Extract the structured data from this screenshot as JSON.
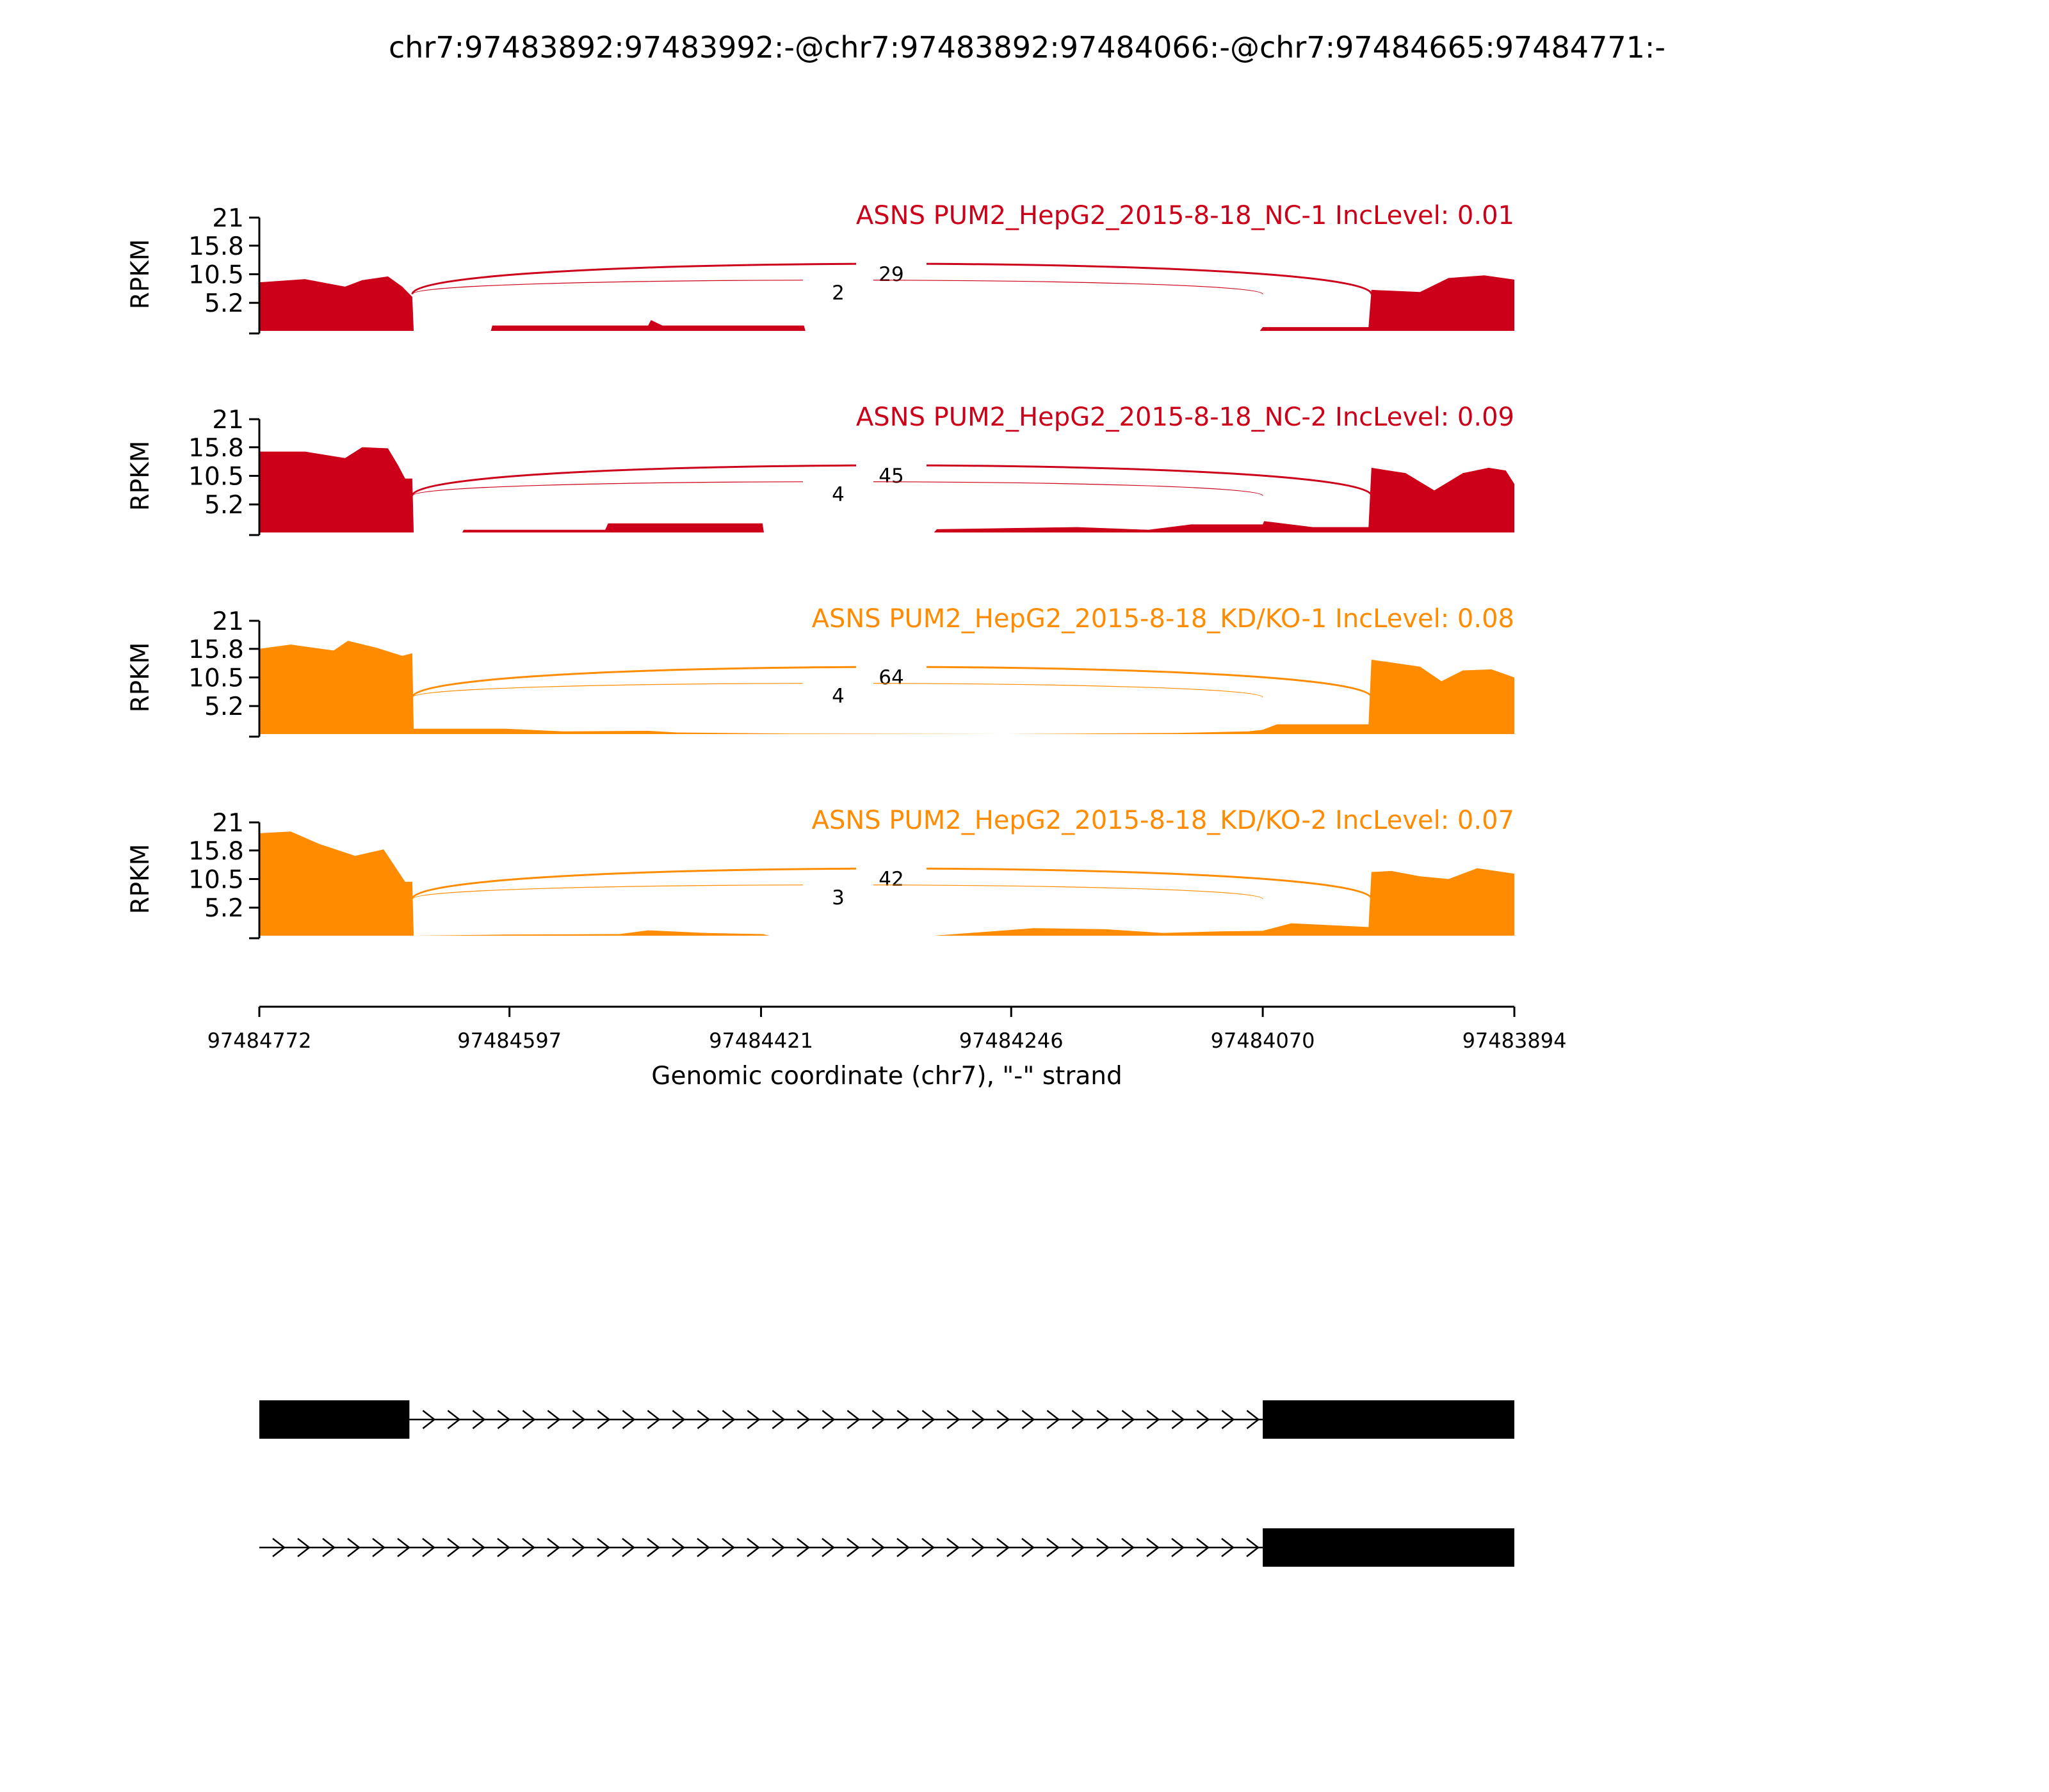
{
  "chart_data": {
    "type": "area",
    "title": "chr7:97483892:97483992:-@chr7:97483892:97484066:-@chr7:97484665:97484771:-",
    "ylabel": "RPKM",
    "xlabel": "Genomic coordinate (chr7), \"-\" strand",
    "ylim": [
      0,
      21
    ],
    "yticks": [
      "21",
      "15.8",
      "10.5",
      "5.2"
    ],
    "xlim": [
      97484772,
      97483894
    ],
    "xticks": [
      "97484772",
      "97484597",
      "97484421",
      "97484246",
      "97484070",
      "97483894"
    ],
    "colors": {
      "NC": "#cc0018",
      "KD": "#ff8c00"
    },
    "series": [
      {
        "name": "ASNS PUM2_HepG2_2015-8-18_NC-1 IncLevel: 0.01",
        "group": "NC",
        "coverage": [
          [
            97484772,
            9.0
          ],
          [
            97484740,
            9.6
          ],
          [
            97484712,
            8.2
          ],
          [
            97484700,
            9.4
          ],
          [
            97484682,
            10.1
          ],
          [
            97484672,
            8.2
          ],
          [
            97484665,
            6.3
          ],
          [
            97484664,
            0
          ],
          [
            97484610,
            0
          ],
          [
            97484609,
            1.0
          ],
          [
            97484500,
            1.0
          ],
          [
            97484498,
            2.0
          ],
          [
            97484490,
            1.0
          ],
          [
            97484391,
            1.0
          ],
          [
            97484390,
            0
          ],
          [
            97484072,
            0
          ],
          [
            97484070,
            0.7
          ],
          [
            97483996,
            0.7
          ],
          [
            97483994,
            7.6
          ],
          [
            97483960,
            7.2
          ],
          [
            97483940,
            9.8
          ],
          [
            97483915,
            10.3
          ],
          [
            97483894,
            9.5
          ]
        ],
        "junctions": [
          {
            "from": 97484665,
            "to": 97483994,
            "count": "29"
          },
          {
            "from": 97484665,
            "to": 97484070,
            "count": "2"
          }
        ]
      },
      {
        "name": "ASNS PUM2_HepG2_2015-8-18_NC-2 IncLevel: 0.09",
        "group": "NC",
        "coverage": [
          [
            97484772,
            15.0
          ],
          [
            97484740,
            15.0
          ],
          [
            97484712,
            13.8
          ],
          [
            97484700,
            15.8
          ],
          [
            97484682,
            15.6
          ],
          [
            97484675,
            12.5
          ],
          [
            97484670,
            10.0
          ],
          [
            97484665,
            10.0
          ],
          [
            97484664,
            0
          ],
          [
            97484630,
            0
          ],
          [
            97484629,
            0.5
          ],
          [
            97484530,
            0.5
          ],
          [
            97484528,
            1.7
          ],
          [
            97484420,
            1.7
          ],
          [
            97484419,
            0
          ],
          [
            97484300,
            0
          ],
          [
            97484298,
            0.6
          ],
          [
            97484200,
            1.0
          ],
          [
            97484150,
            0.5
          ],
          [
            97484120,
            1.5
          ],
          [
            97484070,
            1.5
          ],
          [
            97484069,
            2.1
          ],
          [
            97484035,
            1.0
          ],
          [
            97483996,
            1.0
          ],
          [
            97483994,
            12.0
          ],
          [
            97483970,
            11.0
          ],
          [
            97483950,
            7.8
          ],
          [
            97483930,
            11.0
          ],
          [
            97483912,
            12.0
          ],
          [
            97483900,
            11.5
          ],
          [
            97483894,
            9.0
          ]
        ],
        "junctions": [
          {
            "from": 97484665,
            "to": 97483994,
            "count": "45"
          },
          {
            "from": 97484665,
            "to": 97484070,
            "count": "4"
          }
        ]
      },
      {
        "name": "ASNS PUM2_HepG2_2015-8-18_KD/KO-1 IncLevel: 0.08",
        "group": "KD",
        "coverage": [
          [
            97484772,
            15.8
          ],
          [
            97484750,
            16.6
          ],
          [
            97484720,
            15.5
          ],
          [
            97484710,
            17.3
          ],
          [
            97484690,
            16.0
          ],
          [
            97484672,
            14.5
          ],
          [
            97484665,
            15.0
          ],
          [
            97484664,
            1.0
          ],
          [
            97484600,
            1.0
          ],
          [
            97484560,
            0.5
          ],
          [
            97484500,
            0.6
          ],
          [
            97484480,
            0.3
          ],
          [
            97484400,
            0.1
          ],
          [
            97484250,
            0
          ],
          [
            97484130,
            0.2
          ],
          [
            97484080,
            0.5
          ],
          [
            97484070,
            0.8
          ],
          [
            97484060,
            1.8
          ],
          [
            97483996,
            1.8
          ],
          [
            97483994,
            13.8
          ],
          [
            97483960,
            12.5
          ],
          [
            97483945,
            9.8
          ],
          [
            97483930,
            11.8
          ],
          [
            97483910,
            12.0
          ],
          [
            97483894,
            10.5
          ]
        ],
        "junctions": [
          {
            "from": 97484665,
            "to": 97483994,
            "count": "64"
          },
          {
            "from": 97484665,
            "to": 97484070,
            "count": "4"
          }
        ]
      },
      {
        "name": "ASNS PUM2_HepG2_2015-8-18_KD/KO-2 IncLevel: 0.07",
        "group": "KD",
        "coverage": [
          [
            97484772,
            19.0
          ],
          [
            97484750,
            19.3
          ],
          [
            97484730,
            17.0
          ],
          [
            97484705,
            14.8
          ],
          [
            97484685,
            16.0
          ],
          [
            97484670,
            10.0
          ],
          [
            97484665,
            10.0
          ],
          [
            97484664,
            0
          ],
          [
            97484600,
            0.2
          ],
          [
            97484520,
            0.3
          ],
          [
            97484500,
            1.0
          ],
          [
            97484460,
            0.5
          ],
          [
            97484420,
            0.3
          ],
          [
            97484415,
            0
          ],
          [
            97484300,
            0
          ],
          [
            97484250,
            1.0
          ],
          [
            97484230,
            1.4
          ],
          [
            97484180,
            1.2
          ],
          [
            97484140,
            0.5
          ],
          [
            97484100,
            0.8
          ],
          [
            97484070,
            0.9
          ],
          [
            97484050,
            2.3
          ],
          [
            97483996,
            1.6
          ],
          [
            97483994,
            11.8
          ],
          [
            97483980,
            12.0
          ],
          [
            97483960,
            11.0
          ],
          [
            97483940,
            10.5
          ],
          [
            97483920,
            12.5
          ],
          [
            97483894,
            11.5
          ]
        ],
        "junctions": [
          {
            "from": 97484665,
            "to": 97483994,
            "count": "42"
          },
          {
            "from": 97484665,
            "to": 97484070,
            "count": "3"
          }
        ]
      }
    ],
    "isoforms": [
      {
        "exons": [
          [
            97484772,
            97484667
          ],
          [
            97484070,
            97483894
          ]
        ]
      },
      {
        "exons": [
          [
            97484070,
            97483894
          ]
        ],
        "intron_from": 97484772
      }
    ]
  }
}
